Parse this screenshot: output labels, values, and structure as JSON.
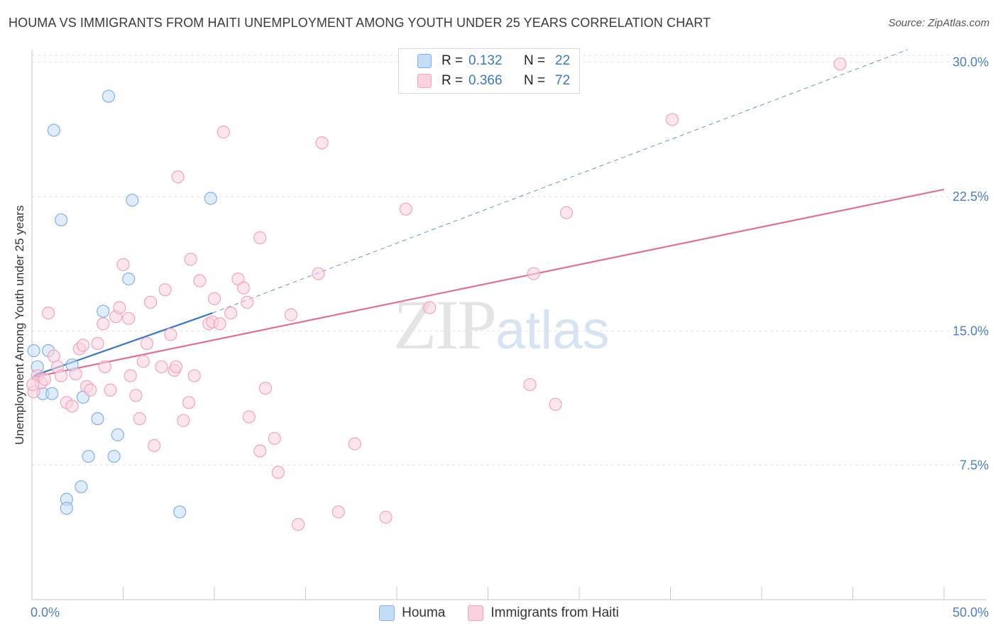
{
  "title": "HOUMA VS IMMIGRANTS FROM HAITI UNEMPLOYMENT AMONG YOUTH UNDER 25 YEARS CORRELATION CHART",
  "source": "Source: ZipAtlas.com",
  "watermark": {
    "zip": "ZIP",
    "atlas": "atlas"
  },
  "colors": {
    "houma": "#7fb0e8",
    "houma_fill": "#c5dcf6",
    "houma_line": "#3a78c8",
    "haiti": "#f1a4bd",
    "haiti_fill": "#fad2df",
    "haiti_line": "#e06f98",
    "axis_text": "#4a7fc1",
    "grid": "#e3e3e3"
  },
  "legend": {
    "rows": [
      {
        "r_label": "R =",
        "r_value": "0.132",
        "n_label": "N =",
        "n_value": "22"
      },
      {
        "r_label": "R =",
        "r_value": "0.366",
        "n_label": "N =",
        "n_value": "72"
      }
    ],
    "bottom": [
      "Houma",
      "Immigrants from Haiti"
    ]
  },
  "chart_data": {
    "type": "scatter",
    "title": "HOUMA VS IMMIGRANTS FROM HAITI UNEMPLOYMENT AMONG YOUTH UNDER 25 YEARS CORRELATION CHART",
    "xlabel": "",
    "ylabel": "Unemployment Among Youth under 25 years",
    "xlim": [
      0,
      50
    ],
    "ylim": [
      0,
      30.7
    ],
    "x_tick_labels": [
      "0.0%",
      "50.0%"
    ],
    "y_ticks": [
      7.5,
      15.0,
      22.5,
      30.0
    ],
    "y_tick_labels": [
      "7.5%",
      "15.0%",
      "22.5%",
      "30.0%"
    ],
    "grid": true,
    "series": [
      {
        "name": "Houma",
        "points": [
          [
            0.1,
            13.9
          ],
          [
            0.3,
            13.0
          ],
          [
            0.6,
            11.5
          ],
          [
            0.9,
            13.9
          ],
          [
            1.1,
            11.5
          ],
          [
            1.2,
            26.2
          ],
          [
            1.6,
            21.2
          ],
          [
            1.9,
            5.6
          ],
          [
            1.9,
            5.1
          ],
          [
            2.2,
            13.1
          ],
          [
            2.7,
            6.3
          ],
          [
            2.8,
            11.3
          ],
          [
            3.1,
            8.0
          ],
          [
            3.6,
            10.1
          ],
          [
            3.9,
            16.1
          ],
          [
            4.2,
            28.1
          ],
          [
            4.5,
            8.0
          ],
          [
            4.7,
            9.2
          ],
          [
            5.3,
            17.9
          ],
          [
            5.5,
            22.3
          ],
          [
            8.1,
            4.9
          ],
          [
            9.8,
            22.4
          ]
        ],
        "trend": {
          "x": [
            0.1,
            9.9
          ],
          "y": [
            12.5,
            16.0
          ],
          "dashed_to": [
            48.0,
            30.7
          ]
        }
      },
      {
        "name": "Immigrants from Haiti",
        "points": [
          [
            0.1,
            11.6
          ],
          [
            0.3,
            12.5
          ],
          [
            0.5,
            12.1
          ],
          [
            0.7,
            12.3
          ],
          [
            0.9,
            16.0
          ],
          [
            1.2,
            13.6
          ],
          [
            1.4,
            13.0
          ],
          [
            1.6,
            12.5
          ],
          [
            1.9,
            11.0
          ],
          [
            2.2,
            10.8
          ],
          [
            2.4,
            12.6
          ],
          [
            2.6,
            14.0
          ],
          [
            2.8,
            14.2
          ],
          [
            3.0,
            11.9
          ],
          [
            3.2,
            11.7
          ],
          [
            3.6,
            14.3
          ],
          [
            3.9,
            15.4
          ],
          [
            4.0,
            13.0
          ],
          [
            4.3,
            11.7
          ],
          [
            4.6,
            15.8
          ],
          [
            4.8,
            16.3
          ],
          [
            5.0,
            18.7
          ],
          [
            5.3,
            15.7
          ],
          [
            5.4,
            12.5
          ],
          [
            5.7,
            11.4
          ],
          [
            5.9,
            10.1
          ],
          [
            6.1,
            13.3
          ],
          [
            6.3,
            14.3
          ],
          [
            6.5,
            16.6
          ],
          [
            6.7,
            8.6
          ],
          [
            7.1,
            13.0
          ],
          [
            7.3,
            17.3
          ],
          [
            7.6,
            14.8
          ],
          [
            7.8,
            12.8
          ],
          [
            7.9,
            13.0
          ],
          [
            8.0,
            23.6
          ],
          [
            8.3,
            10.0
          ],
          [
            8.6,
            11.0
          ],
          [
            8.7,
            19.0
          ],
          [
            8.9,
            12.5
          ],
          [
            9.2,
            17.8
          ],
          [
            9.7,
            15.4
          ],
          [
            9.9,
            15.5
          ],
          [
            10.0,
            16.8
          ],
          [
            10.3,
            15.4
          ],
          [
            10.5,
            26.1
          ],
          [
            10.9,
            16.0
          ],
          [
            11.3,
            17.9
          ],
          [
            11.6,
            17.4
          ],
          [
            11.8,
            16.6
          ],
          [
            11.9,
            10.2
          ],
          [
            12.5,
            20.2
          ],
          [
            12.5,
            8.3
          ],
          [
            12.8,
            11.8
          ],
          [
            13.3,
            9.0
          ],
          [
            13.5,
            7.1
          ],
          [
            14.2,
            15.9
          ],
          [
            14.6,
            4.2
          ],
          [
            15.7,
            18.2
          ],
          [
            15.9,
            25.5
          ],
          [
            16.8,
            4.9
          ],
          [
            17.7,
            8.7
          ],
          [
            19.4,
            4.6
          ],
          [
            20.5,
            21.8
          ],
          [
            21.8,
            16.3
          ],
          [
            27.3,
            12.0
          ],
          [
            27.5,
            18.2
          ],
          [
            28.7,
            10.9
          ],
          [
            29.3,
            21.6
          ],
          [
            35.1,
            26.8
          ],
          [
            44.3,
            29.9
          ],
          [
            0.05,
            12.0
          ]
        ],
        "trend": {
          "x": [
            0.0,
            50.0
          ],
          "y": [
            12.4,
            22.9
          ]
        }
      }
    ]
  }
}
